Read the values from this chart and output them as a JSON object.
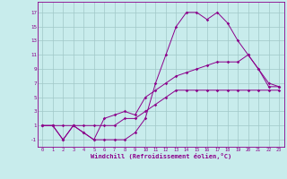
{
  "title": "",
  "xlabel": "Windchill (Refroidissement éolien,°C)",
  "ylabel": "",
  "bg_color": "#c8ecec",
  "grid_color": "#a0c8c8",
  "line_color": "#8b008b",
  "xlim": [
    -0.5,
    23.5
  ],
  "ylim": [
    -2,
    18.5
  ],
  "xticks": [
    0,
    1,
    2,
    3,
    4,
    5,
    6,
    7,
    8,
    9,
    10,
    11,
    12,
    13,
    14,
    15,
    16,
    17,
    18,
    19,
    20,
    21,
    22,
    23
  ],
  "yticks": [
    -1,
    1,
    3,
    5,
    7,
    9,
    11,
    13,
    15,
    17
  ],
  "line1_x": [
    0,
    1,
    2,
    3,
    4,
    5,
    6,
    7,
    8,
    9,
    10,
    11,
    12,
    13,
    14,
    15,
    16,
    17,
    18,
    19,
    20,
    21,
    22,
    23
  ],
  "line1_y": [
    1,
    1,
    1,
    1,
    1,
    1,
    1,
    1,
    2,
    2,
    3,
    4,
    5,
    6,
    6,
    6,
    6,
    6,
    6,
    6,
    6,
    6,
    6,
    6
  ],
  "line2_x": [
    0,
    1,
    2,
    3,
    4,
    5,
    6,
    7,
    8,
    9,
    10,
    11,
    12,
    13,
    14,
    15,
    16,
    17,
    18,
    19,
    20,
    21,
    22,
    23
  ],
  "line2_y": [
    1,
    1,
    -1,
    1,
    0,
    -1,
    -1,
    -1,
    -1,
    0,
    2,
    7,
    11,
    15,
    17,
    17,
    16,
    17,
    15.5,
    13,
    11,
    9,
    7,
    6.5
  ],
  "line3_x": [
    0,
    1,
    2,
    3,
    4,
    5,
    6,
    7,
    8,
    9,
    10,
    11,
    12,
    13,
    14,
    15,
    16,
    17,
    18,
    19,
    20,
    21,
    22,
    23
  ],
  "line3_y": [
    1,
    1,
    -1,
    1,
    0,
    -1,
    2,
    2.5,
    3,
    2.5,
    5,
    6,
    7,
    8,
    8.5,
    9,
    9.5,
    10,
    10,
    10,
    11,
    9,
    6.5,
    6.5
  ]
}
